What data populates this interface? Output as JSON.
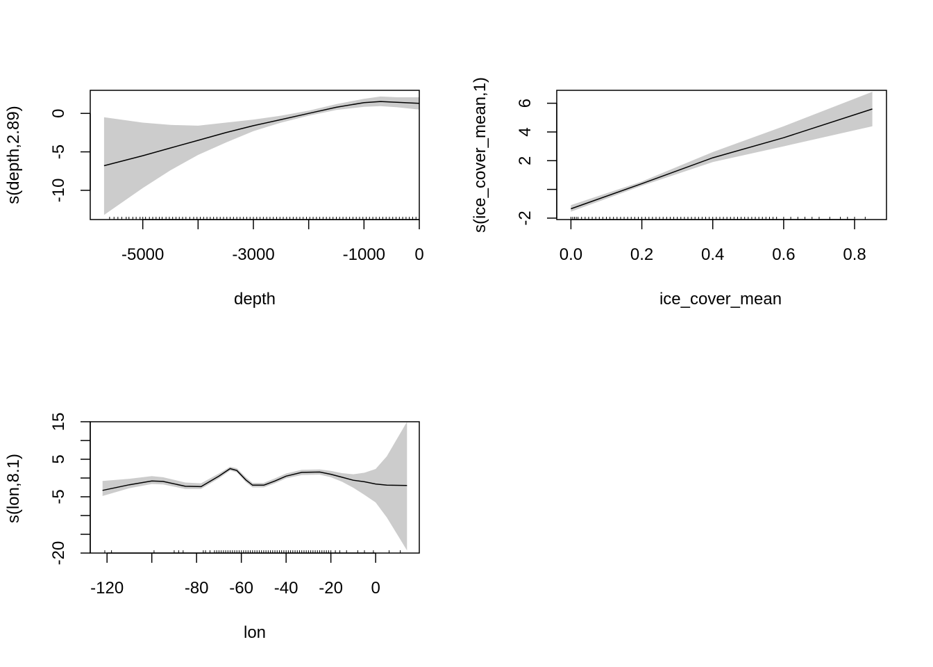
{
  "chart_data": [
    {
      "type": "line",
      "panel": "depth",
      "xlabel": "depth",
      "ylabel": "s(depth,2.89)",
      "xlim": [
        -5950,
        0
      ],
      "ylim": [
        -13.8,
        3
      ],
      "xticks": [
        -5000,
        -4000,
        -3000,
        -2000,
        -1000,
        0
      ],
      "xtick_labels": [
        "-5000",
        "",
        "-3000",
        "",
        "-1000",
        "0"
      ],
      "yticks": [
        -10,
        -5,
        0
      ],
      "ytick_labels": [
        "-10",
        "-5",
        "0"
      ],
      "x": [
        -5700,
        -5000,
        -4500,
        -4000,
        -3500,
        -3000,
        -2500,
        -2000,
        -1500,
        -1000,
        -700,
        -400,
        0
      ],
      "fit": [
        -6.8,
        -5.5,
        -4.5,
        -3.5,
        -2.5,
        -1.6,
        -0.8,
        0.0,
        0.8,
        1.4,
        1.55,
        1.45,
        1.3
      ],
      "lower": [
        -13.2,
        -9.7,
        -7.4,
        -5.4,
        -3.8,
        -2.3,
        -1.2,
        -0.3,
        0.45,
        0.85,
        0.95,
        0.8,
        0.5
      ],
      "upper": [
        -0.5,
        -1.2,
        -1.5,
        -1.6,
        -1.2,
        -0.8,
        -0.3,
        0.35,
        1.2,
        1.9,
        2.2,
        2.1,
        2.1
      ],
      "series": [
        {
          "name": "",
          "values": [
            -6.8,
            -5.5,
            -4.5,
            -3.5,
            -2.5,
            -1.6,
            -0.8,
            0.0,
            0.8,
            1.4,
            1.55,
            1.45,
            1.3
          ]
        }
      ],
      "rug": [
        -5600,
        -5520,
        -5450,
        -5380,
        -5300,
        -5250,
        -5180,
        -5120,
        -5050,
        -5000,
        -4950,
        -4880,
        -4820,
        -4760,
        -4700,
        -4650,
        -4580,
        -4520,
        -4460,
        -4400,
        -4340,
        -4280,
        -4220,
        -4150,
        -4080,
        -4020,
        -3960,
        -3900,
        -3840,
        -3780,
        -3720,
        -3660,
        -3600,
        -3540,
        -3480,
        -3420,
        -3360,
        -3300,
        -3240,
        -3180,
        -3120,
        -3060,
        -3000,
        -2940,
        -2880,
        -2820,
        -2760,
        -2700,
        -2640,
        -2580,
        -2520,
        -2460,
        -2400,
        -2340,
        -2280,
        -2220,
        -2160,
        -2100,
        -2040,
        -1980,
        -1920,
        -1860,
        -1800,
        -1740,
        -1680,
        -1620,
        -1560,
        -1500,
        -1440,
        -1380,
        -1320,
        -1260,
        -1200,
        -1140,
        -1080,
        -1020,
        -960,
        -900,
        -840,
        -780,
        -720,
        -660,
        -600,
        -540,
        -480,
        -420,
        -360,
        -300,
        -240,
        -180,
        -120,
        -60
      ]
    },
    {
      "type": "line",
      "panel": "ice_cover_mean",
      "xlabel": "ice_cover_mean",
      "ylabel": "s(ice_cover_mean,1)",
      "xlim": [
        -0.04,
        0.89
      ],
      "ylim": [
        -2.1,
        6.9
      ],
      "xticks": [
        0.0,
        0.2,
        0.4,
        0.6,
        0.8
      ],
      "xtick_labels": [
        "0.0",
        "0.2",
        "0.4",
        "0.6",
        "0.8"
      ],
      "yticks": [
        -2,
        0,
        2,
        4,
        6
      ],
      "ytick_labels": [
        "-2",
        "",
        "2",
        "4",
        "6"
      ],
      "x": [
        0.0,
        0.2,
        0.4,
        0.6,
        0.85
      ],
      "fit": [
        -1.35,
        0.4,
        2.2,
        3.6,
        5.6
      ],
      "lower": [
        -1.55,
        0.25,
        1.9,
        3.0,
        4.4
      ],
      "upper": [
        -1.1,
        0.55,
        2.6,
        4.4,
        6.8
      ],
      "series": [
        {
          "name": "",
          "values": [
            -1.35,
            0.4,
            2.2,
            3.6,
            5.6
          ]
        }
      ],
      "rug": [
        0.0,
        0.005,
        0.01,
        0.015,
        0.02,
        0.03,
        0.04,
        0.05,
        0.06,
        0.07,
        0.08,
        0.09,
        0.1,
        0.11,
        0.12,
        0.13,
        0.14,
        0.15,
        0.16,
        0.17,
        0.18,
        0.19,
        0.2,
        0.21,
        0.22,
        0.23,
        0.24,
        0.25,
        0.26,
        0.27,
        0.28,
        0.29,
        0.3,
        0.31,
        0.32,
        0.33,
        0.34,
        0.35,
        0.36,
        0.37,
        0.38,
        0.39,
        0.4,
        0.41,
        0.42,
        0.43,
        0.44,
        0.45,
        0.46,
        0.47,
        0.48,
        0.49,
        0.5,
        0.51,
        0.52,
        0.53,
        0.54,
        0.55,
        0.56,
        0.57,
        0.58,
        0.6,
        0.62,
        0.64,
        0.66,
        0.68,
        0.7,
        0.73,
        0.76,
        0.78,
        0.8,
        0.83
      ]
    },
    {
      "type": "line",
      "panel": "lon",
      "xlabel": "lon",
      "ylabel": "s(lon,8.1)",
      "xlim": [
        -127.5,
        19.5
      ],
      "ylim": [
        -20,
        15
      ],
      "xticks": [
        -120,
        -100,
        -80,
        -60,
        -40,
        -20,
        0
      ],
      "xtick_labels": [
        "-120",
        "",
        "-80",
        "-60",
        "-40",
        "-20",
        "0"
      ],
      "yticks": [
        -20,
        -15,
        -10,
        -5,
        0,
        5,
        10,
        15
      ],
      "ytick_labels": [
        "-20",
        "",
        "",
        "-5",
        "",
        "5",
        "",
        "15"
      ],
      "x": [
        -122,
        -110,
        -100,
        -95,
        -85,
        -78,
        -70,
        -65,
        -62,
        -58,
        -55,
        -50,
        -45,
        -40,
        -33,
        -25,
        -20,
        -15,
        -10,
        -5,
        0,
        5,
        14
      ],
      "fit": [
        -3.3,
        -1.8,
        -0.8,
        -0.9,
        -2.2,
        -2.3,
        0.5,
        2.5,
        2.0,
        -0.5,
        -1.9,
        -1.9,
        -0.8,
        0.5,
        1.5,
        1.6,
        1.0,
        0.2,
        -0.6,
        -1.0,
        -1.6,
        -1.9,
        -2.0
      ],
      "lower": [
        -4.8,
        -2.7,
        -1.6,
        -1.7,
        -2.9,
        -2.9,
        -0.1,
        2.0,
        1.5,
        -1.1,
        -2.5,
        -2.5,
        -1.4,
        -0.1,
        0.8,
        0.9,
        0.2,
        -1.0,
        -2.6,
        -4.5,
        -6.5,
        -10.5,
        -19.3
      ],
      "upper": [
        -0.8,
        -0.2,
        0.5,
        0.2,
        -1.2,
        -1.4,
        1.2,
        3.0,
        2.6,
        0.2,
        -1.3,
        -1.3,
        -0.1,
        1.2,
        2.2,
        2.3,
        1.9,
        1.3,
        1.0,
        1.4,
        2.4,
        5.8,
        15.0
      ],
      "series": [
        {
          "name": "",
          "values": [
            -3.3,
            -1.8,
            -0.8,
            -0.9,
            -2.2,
            -2.3,
            0.5,
            2.5,
            2.0,
            -0.5,
            -1.9,
            -1.9,
            -0.8,
            0.5,
            1.5,
            1.6,
            1.0,
            0.2,
            -0.6,
            -1.0,
            -1.6,
            -1.9,
            -2.0
          ]
        }
      ],
      "rug": [
        -121,
        -118,
        -99,
        -90,
        -88,
        -86,
        -77,
        -76,
        -74,
        -72,
        -71,
        -70,
        -69,
        -68,
        -67,
        -66,
        -65,
        -64,
        -63,
        -62,
        -61,
        -60,
        -59,
        -58,
        -57,
        -56,
        -55,
        -54,
        -53,
        -52,
        -51,
        -50,
        -49,
        -48,
        -47,
        -46,
        -45,
        -44,
        -43,
        -42,
        -41,
        -40,
        -39,
        -38,
        -37,
        -36,
        -35,
        -34,
        -33,
        -32,
        -31,
        -30,
        -29,
        -28,
        -27,
        -26,
        -25,
        -24,
        -23,
        -22,
        -21,
        -20,
        -18,
        -16,
        -13,
        -8,
        -5,
        -1,
        6,
        11
      ]
    }
  ]
}
